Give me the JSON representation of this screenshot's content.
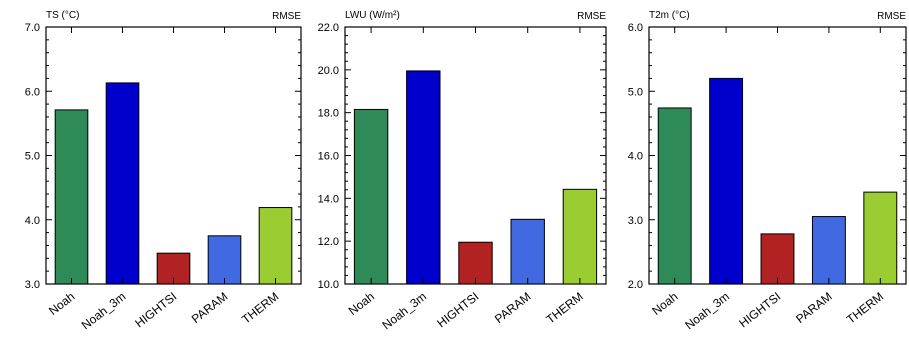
{
  "chart_data": [
    {
      "type": "bar",
      "title": "TS (°C)",
      "stat_label": "RMSE",
      "categories": [
        "Noah",
        "Noah_3m",
        "HIGHTSI",
        "PARAM",
        "THERM"
      ],
      "values": [
        5.71,
        6.13,
        3.48,
        3.75,
        4.19
      ],
      "ylim": [
        3.0,
        7.0
      ],
      "yticks": [
        "3.0",
        "4.0",
        "5.0",
        "6.0",
        "7.0"
      ],
      "colors": [
        "#2e8b57",
        "#0000cd",
        "#b22222",
        "#4169e1",
        "#9acd32"
      ]
    },
    {
      "type": "bar",
      "title": "LWU (W/m²)",
      "stat_label": "RMSE",
      "categories": [
        "Noah",
        "Noah_3m",
        "HIGHTSI",
        "PARAM",
        "THERM"
      ],
      "values": [
        18.15,
        19.95,
        11.95,
        13.02,
        14.42
      ],
      "ylim": [
        10.0,
        22.0
      ],
      "yticks": [
        "10.0",
        "12.0",
        "14.0",
        "16.0",
        "18.0",
        "20.0",
        "22.0"
      ],
      "colors": [
        "#2e8b57",
        "#0000cd",
        "#b22222",
        "#4169e1",
        "#9acd32"
      ]
    },
    {
      "type": "bar",
      "title": "T2m (°C)",
      "stat_label": "RMSE",
      "categories": [
        "Noah",
        "Noah_3m",
        "HIGHTSI",
        "PARAM",
        "THERM"
      ],
      "values": [
        4.74,
        5.2,
        2.78,
        3.05,
        3.43
      ],
      "ylim": [
        2.0,
        6.0
      ],
      "yticks": [
        "2.0",
        "3.0",
        "4.0",
        "5.0",
        "6.0"
      ],
      "colors": [
        "#2e8b57",
        "#0000cd",
        "#b22222",
        "#4169e1",
        "#9acd32"
      ]
    }
  ]
}
